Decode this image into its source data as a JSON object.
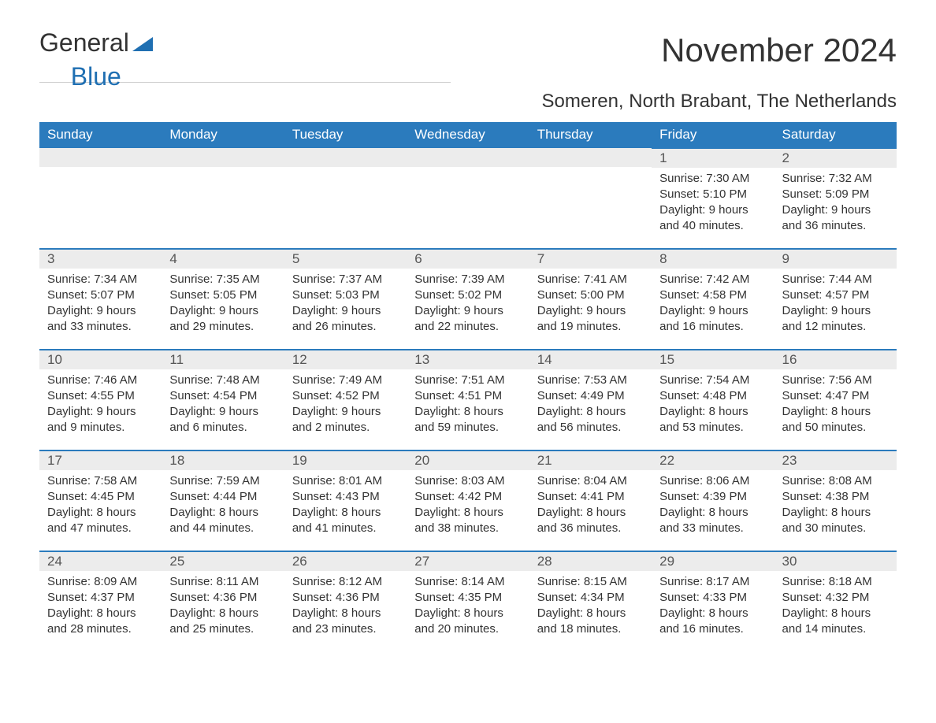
{
  "logo": {
    "text1": "General",
    "text2": "Blue",
    "accent_color": "#1f6fb2"
  },
  "title": "November 2024",
  "subtitle": "Someren, North Brabant, The Netherlands",
  "colors": {
    "header_bg": "#2b7bbd",
    "header_text": "#ffffff",
    "daynum_bg": "#ececec",
    "border": "#2b7bbd",
    "text": "#333333"
  },
  "weekdays": [
    "Sunday",
    "Monday",
    "Tuesday",
    "Wednesday",
    "Thursday",
    "Friday",
    "Saturday"
  ],
  "labels": {
    "sunrise": "Sunrise:",
    "sunset": "Sunset:",
    "daylight": "Daylight:"
  },
  "weeks": [
    [
      null,
      null,
      null,
      null,
      null,
      {
        "day": "1",
        "sunrise": "7:30 AM",
        "sunset": "5:10 PM",
        "daylight": "9 hours and 40 minutes."
      },
      {
        "day": "2",
        "sunrise": "7:32 AM",
        "sunset": "5:09 PM",
        "daylight": "9 hours and 36 minutes."
      }
    ],
    [
      {
        "day": "3",
        "sunrise": "7:34 AM",
        "sunset": "5:07 PM",
        "daylight": "9 hours and 33 minutes."
      },
      {
        "day": "4",
        "sunrise": "7:35 AM",
        "sunset": "5:05 PM",
        "daylight": "9 hours and 29 minutes."
      },
      {
        "day": "5",
        "sunrise": "7:37 AM",
        "sunset": "5:03 PM",
        "daylight": "9 hours and 26 minutes."
      },
      {
        "day": "6",
        "sunrise": "7:39 AM",
        "sunset": "5:02 PM",
        "daylight": "9 hours and 22 minutes."
      },
      {
        "day": "7",
        "sunrise": "7:41 AM",
        "sunset": "5:00 PM",
        "daylight": "9 hours and 19 minutes."
      },
      {
        "day": "8",
        "sunrise": "7:42 AM",
        "sunset": "4:58 PM",
        "daylight": "9 hours and 16 minutes."
      },
      {
        "day": "9",
        "sunrise": "7:44 AM",
        "sunset": "4:57 PM",
        "daylight": "9 hours and 12 minutes."
      }
    ],
    [
      {
        "day": "10",
        "sunrise": "7:46 AM",
        "sunset": "4:55 PM",
        "daylight": "9 hours and 9 minutes."
      },
      {
        "day": "11",
        "sunrise": "7:48 AM",
        "sunset": "4:54 PM",
        "daylight": "9 hours and 6 minutes."
      },
      {
        "day": "12",
        "sunrise": "7:49 AM",
        "sunset": "4:52 PM",
        "daylight": "9 hours and 2 minutes."
      },
      {
        "day": "13",
        "sunrise": "7:51 AM",
        "sunset": "4:51 PM",
        "daylight": "8 hours and 59 minutes."
      },
      {
        "day": "14",
        "sunrise": "7:53 AM",
        "sunset": "4:49 PM",
        "daylight": "8 hours and 56 minutes."
      },
      {
        "day": "15",
        "sunrise": "7:54 AM",
        "sunset": "4:48 PM",
        "daylight": "8 hours and 53 minutes."
      },
      {
        "day": "16",
        "sunrise": "7:56 AM",
        "sunset": "4:47 PM",
        "daylight": "8 hours and 50 minutes."
      }
    ],
    [
      {
        "day": "17",
        "sunrise": "7:58 AM",
        "sunset": "4:45 PM",
        "daylight": "8 hours and 47 minutes."
      },
      {
        "day": "18",
        "sunrise": "7:59 AM",
        "sunset": "4:44 PM",
        "daylight": "8 hours and 44 minutes."
      },
      {
        "day": "19",
        "sunrise": "8:01 AM",
        "sunset": "4:43 PM",
        "daylight": "8 hours and 41 minutes."
      },
      {
        "day": "20",
        "sunrise": "8:03 AM",
        "sunset": "4:42 PM",
        "daylight": "8 hours and 38 minutes."
      },
      {
        "day": "21",
        "sunrise": "8:04 AM",
        "sunset": "4:41 PM",
        "daylight": "8 hours and 36 minutes."
      },
      {
        "day": "22",
        "sunrise": "8:06 AM",
        "sunset": "4:39 PM",
        "daylight": "8 hours and 33 minutes."
      },
      {
        "day": "23",
        "sunrise": "8:08 AM",
        "sunset": "4:38 PM",
        "daylight": "8 hours and 30 minutes."
      }
    ],
    [
      {
        "day": "24",
        "sunrise": "8:09 AM",
        "sunset": "4:37 PM",
        "daylight": "8 hours and 28 minutes."
      },
      {
        "day": "25",
        "sunrise": "8:11 AM",
        "sunset": "4:36 PM",
        "daylight": "8 hours and 25 minutes."
      },
      {
        "day": "26",
        "sunrise": "8:12 AM",
        "sunset": "4:36 PM",
        "daylight": "8 hours and 23 minutes."
      },
      {
        "day": "27",
        "sunrise": "8:14 AM",
        "sunset": "4:35 PM",
        "daylight": "8 hours and 20 minutes."
      },
      {
        "day": "28",
        "sunrise": "8:15 AM",
        "sunset": "4:34 PM",
        "daylight": "8 hours and 18 minutes."
      },
      {
        "day": "29",
        "sunrise": "8:17 AM",
        "sunset": "4:33 PM",
        "daylight": "8 hours and 16 minutes."
      },
      {
        "day": "30",
        "sunrise": "8:18 AM",
        "sunset": "4:32 PM",
        "daylight": "8 hours and 14 minutes."
      }
    ]
  ]
}
